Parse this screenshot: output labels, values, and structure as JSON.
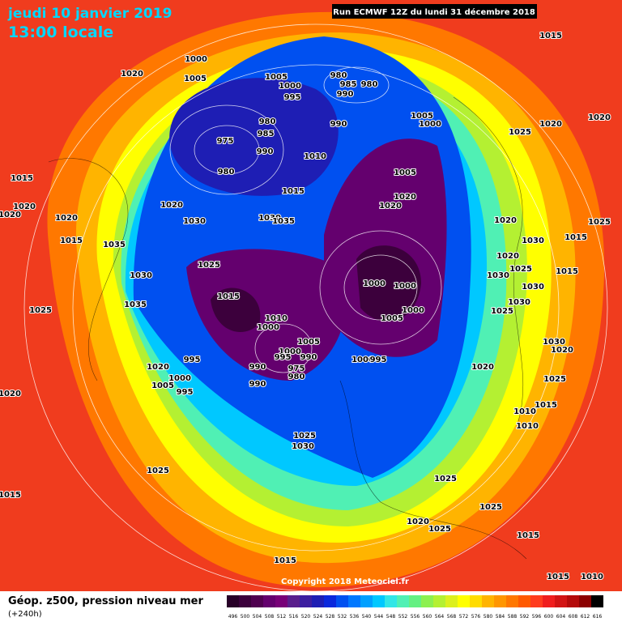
{
  "header": {
    "date": "jeudi 10 janvier 2019",
    "time": "13:00 locale",
    "run": "Run ECMWF 12Z du lundi 31 décembre 2018"
  },
  "footer": {
    "title": "Géop. z500, pression niveau mer",
    "lead": "(+240h)",
    "copyright": "Copyright 2018 Meteociel.fr"
  },
  "legend": {
    "values": [
      496,
      500,
      504,
      508,
      512,
      516,
      520,
      524,
      528,
      532,
      536,
      540,
      544,
      548,
      552,
      556,
      560,
      564,
      568,
      572,
      576,
      580,
      584,
      588,
      592,
      596,
      600,
      604,
      608,
      612,
      616
    ],
    "colors": [
      "#280028",
      "#3c003c",
      "#500050",
      "#64006e",
      "#780078",
      "#5a1e8c",
      "#3c1ea0",
      "#1e1eb4",
      "#0a28dc",
      "#0050f0",
      "#0078ff",
      "#00a0ff",
      "#00c8ff",
      "#32e6e6",
      "#50f0b4",
      "#64f082",
      "#8cf050",
      "#b4f032",
      "#dcf01e",
      "#ffff00",
      "#ffdc00",
      "#ffb400",
      "#ff9600",
      "#ff7800",
      "#ff5a00",
      "#ff3c1e",
      "#f01e1e",
      "#d21414",
      "#b40a0a",
      "#8c0000",
      "#000000"
    ]
  },
  "isobar_labels": [
    1015,
    1020,
    1020,
    1025,
    1000,
    1005,
    1020,
    1005,
    1000,
    995,
    980,
    985,
    990,
    980,
    990,
    1005,
    1000,
    975,
    980,
    985,
    990,
    980,
    1010,
    1005,
    1015,
    1020,
    1020,
    1020,
    1030,
    1030,
    1035,
    1015,
    1020,
    1020,
    1020,
    1015,
    1035,
    1030,
    1035,
    1025,
    1025,
    1015,
    1010,
    1000,
    1005,
    1000,
    995,
    990,
    975,
    980,
    990,
    990,
    995,
    1020,
    1000,
    1005,
    995,
    1020,
    1000,
    1000,
    1000,
    1005,
    1000,
    995,
    1020,
    1025,
    1015,
    1010,
    1010,
    1025,
    1030,
    1025,
    1025,
    1025,
    1020,
    1025,
    1015,
    1015,
    1015,
    1010,
    1015,
    1020,
    1030,
    1015,
    1020,
    1025,
    1030,
    1030,
    1030,
    1025,
    1015,
    1025,
    1030,
    1020
  ]
}
